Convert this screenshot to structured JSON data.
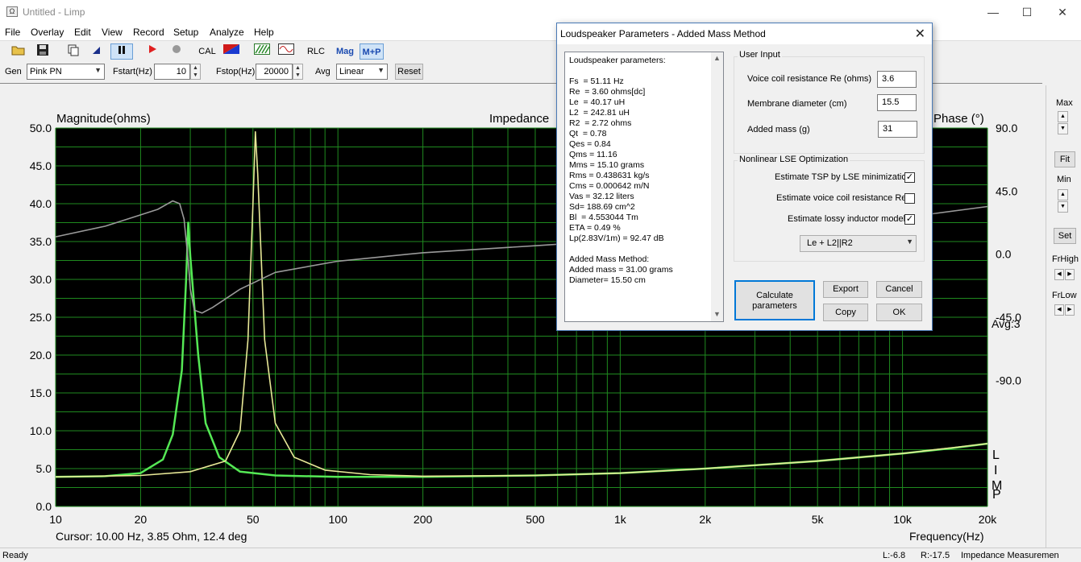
{
  "window": {
    "title": "Untitled - Limp",
    "icon": "Ω",
    "minimize": "—",
    "maximize": "☐",
    "close": "✕"
  },
  "menu": [
    "File",
    "Overlay",
    "Edit",
    "View",
    "Record",
    "Setup",
    "Analyze",
    "Help"
  ],
  "toolbar": {
    "cal": "CAL",
    "rlc": "RLC",
    "mag": "Mag",
    "mp": "M+P"
  },
  "controls": {
    "gen_label": "Gen",
    "gen_value": "Pink PN",
    "fstart_label": "Fstart(Hz)",
    "fstart_value": "10",
    "fstop_label": "Fstop(Hz)",
    "fstop_value": "20000",
    "avg_label": "Avg",
    "avg_value": "Linear",
    "reset_label": "Reset"
  },
  "plot": {
    "left_title": "Magnitude(ohms)",
    "center_title": "Impedance",
    "right_title": "Phase (°)",
    "avg_text": "Avg:3",
    "limp_letters": [
      "L",
      "I",
      "M",
      "P"
    ],
    "cursor_text": "Cursor: 10.00 Hz, 3.85 Ohm, 12.4 deg",
    "x_axis_label": "Frequency(Hz)"
  },
  "chart_data": {
    "type": "line",
    "title": "Impedance",
    "xlabel": "Frequency(Hz)",
    "ylabel": "Magnitude(ohms)",
    "y2label": "Phase (°)",
    "xscale": "log",
    "xlim": [
      10,
      20000
    ],
    "ylim": [
      0,
      50
    ],
    "y2lim": [
      -180,
      90
    ],
    "x_ticks": [
      10,
      20,
      50,
      100,
      200,
      500,
      1000,
      2000,
      5000,
      10000,
      20000
    ],
    "x_tick_labels": [
      "10",
      "20",
      "50",
      "100",
      "200",
      "500",
      "1k",
      "2k",
      "5k",
      "10k",
      "20k"
    ],
    "y_tick_labels": [
      "50.0",
      "45.0",
      "40.0",
      "35.0",
      "30.0",
      "25.0",
      "20.0",
      "15.0",
      "10.0",
      "5.0",
      "0.0"
    ],
    "y2_tick_labels": [
      "90.0",
      "45.0",
      "0.0",
      "-45.0",
      "-90.0"
    ],
    "grid": true,
    "colors": {
      "background": "#000000",
      "grid": "#1f8a1f",
      "green": "#55e855",
      "yellow": "#e8e897",
      "gray": "#9a9a9a"
    },
    "series": [
      {
        "color": "#55e855",
        "axis": "magnitude",
        "points": [
          [
            10,
            3.9
          ],
          [
            15,
            4.0
          ],
          [
            20,
            4.4
          ],
          [
            24,
            6.2
          ],
          [
            26,
            9.5
          ],
          [
            28,
            18
          ],
          [
            29,
            30
          ],
          [
            29.5,
            37.5
          ],
          [
            30,
            33
          ],
          [
            32,
            20
          ],
          [
            34,
            11
          ],
          [
            38,
            6.5
          ],
          [
            45,
            4.6
          ],
          [
            60,
            4.1
          ],
          [
            100,
            3.9
          ],
          [
            200,
            3.9
          ],
          [
            500,
            4.1
          ],
          [
            1000,
            4.4
          ],
          [
            2000,
            5.0
          ],
          [
            5000,
            6.0
          ],
          [
            10000,
            7.0
          ],
          [
            15000,
            7.7
          ],
          [
            20000,
            8.3
          ]
        ]
      },
      {
        "color": "#e8e897",
        "axis": "magnitude",
        "points": [
          [
            10,
            3.9
          ],
          [
            20,
            4.1
          ],
          [
            30,
            4.6
          ],
          [
            40,
            6.0
          ],
          [
            45,
            10
          ],
          [
            48,
            22
          ],
          [
            50,
            40
          ],
          [
            51,
            49.5
          ],
          [
            52,
            44
          ],
          [
            55,
            22
          ],
          [
            60,
            11
          ],
          [
            70,
            6.5
          ],
          [
            90,
            4.8
          ],
          [
            130,
            4.2
          ],
          [
            200,
            4.0
          ],
          [
            500,
            4.1
          ],
          [
            1000,
            4.4
          ],
          [
            2000,
            5.0
          ],
          [
            5000,
            6.0
          ],
          [
            10000,
            7.0
          ],
          [
            20000,
            8.3
          ]
        ]
      },
      {
        "color": "#9a9a9a",
        "axis": "phase",
        "points": [
          [
            10,
            12.4
          ],
          [
            15,
            20
          ],
          [
            20,
            28
          ],
          [
            23,
            32
          ],
          [
            26,
            38
          ],
          [
            27.5,
            36
          ],
          [
            28.5,
            25
          ],
          [
            29.5,
            -5
          ],
          [
            30,
            -25
          ],
          [
            31,
            -40
          ],
          [
            33,
            -42
          ],
          [
            36,
            -38
          ],
          [
            45,
            -25
          ],
          [
            60,
            -13
          ],
          [
            100,
            -5
          ],
          [
            200,
            1
          ],
          [
            500,
            6
          ],
          [
            1000,
            10
          ],
          [
            2000,
            14
          ],
          [
            5000,
            20
          ],
          [
            10000,
            26
          ],
          [
            20000,
            34
          ]
        ]
      }
    ]
  },
  "right_panel": {
    "max": "Max",
    "fit": "Fit",
    "min": "Min",
    "set": "Set",
    "frhigh": "FrHigh",
    "frlow": "FrLow"
  },
  "status": {
    "ready": "Ready",
    "l": "L:-6.8",
    "r": "R:-17.5",
    "mode": "Impedance Measuremen"
  },
  "dialog": {
    "title": "Loudspeaker Parameters - Added Mass Method",
    "params_text": "Loudspeaker parameters:\n\nFs  = 51.11 Hz\nRe  = 3.60 ohms[dc]\nLe  = 40.17 uH\nL2  = 242.81 uH\nR2  = 2.72 ohms\nQt  = 0.78\nQes = 0.84\nQms = 11.16\nMms = 15.10 grams\nRms = 0.438631 kg/s\nCms = 0.000642 m/N\nVas = 32.12 liters\nSd= 188.69 cm^2\nBl  = 4.553044 Tm\nETA = 0.49 %\nLp(2.83V/1m) = 92.47 dB\n\nAdded Mass Method:\nAdded mass = 31.00 grams\nDiameter= 15.50 cm",
    "user_input_label": "User Input",
    "re_label": "Voice coil resistance Re (ohms)",
    "re_value": "3.6",
    "diam_label": "Membrane diameter (cm)",
    "diam_value": "15.5",
    "mass_label": "Added mass (g)",
    "mass_value": "31",
    "lse_label": "Nonlinear LSE Optimization",
    "chk1_label": "Estimate TSP by LSE minimization",
    "chk1": "✓",
    "chk2_label": "Estimate voice coil resistance Re",
    "chk2": "",
    "chk3_label": "Estimate lossy inductor model",
    "chk3": "✓",
    "model_value": "Le + L2||R2",
    "calc_line1": "Calculate",
    "calc_line2": "parameters",
    "export": "Export",
    "cancel": "Cancel",
    "copy": "Copy",
    "ok": "OK"
  }
}
